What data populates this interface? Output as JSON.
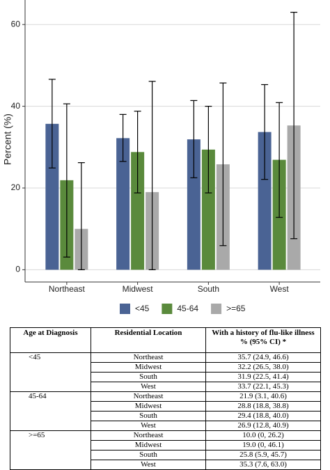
{
  "chart_data": {
    "type": "bar",
    "y_label": "Percent (%)",
    "categories": [
      "Northeast",
      "Midwest",
      "South",
      "West"
    ],
    "series": [
      {
        "name": "<45",
        "color": "#4a6394",
        "values": [
          35.7,
          32.2,
          31.9,
          33.7
        ],
        "lower": [
          24.9,
          26.5,
          22.5,
          22.1
        ],
        "upper": [
          46.6,
          38.0,
          41.4,
          45.3
        ]
      },
      {
        "name": "45-64",
        "color": "#5a8a3c",
        "values": [
          21.9,
          28.8,
          29.4,
          26.9
        ],
        "lower": [
          3.1,
          18.8,
          18.8,
          12.8
        ],
        "upper": [
          40.6,
          38.8,
          40.0,
          40.9
        ]
      },
      {
        "name": ">=65",
        "color": "#a9a9a9",
        "values": [
          10.0,
          19.0,
          25.8,
          35.3
        ],
        "lower": [
          0,
          0,
          5.9,
          7.6
        ],
        "upper": [
          26.2,
          46.1,
          45.7,
          63.0
        ]
      }
    ],
    "ylim": [
      -3,
      66
    ],
    "yticks": [
      0,
      20,
      40,
      60
    ],
    "grid": true,
    "legend": "bottom"
  },
  "table": {
    "header": [
      "Age at Diagnosis",
      "Residential Location",
      "With a history of flu-like illness % (95% CI) *"
    ],
    "groups": [
      {
        "age": "<45",
        "rows": [
          [
            "Northeast",
            "35.7 (24.9, 46.6)"
          ],
          [
            "Midwest",
            "32.2 (26.5, 38.0)"
          ],
          [
            "South",
            "31.9 (22.5, 41.4)"
          ],
          [
            "West",
            "33.7 (22.1, 45.3)"
          ]
        ]
      },
      {
        "age": "45-64",
        "rows": [
          [
            "Northeast",
            "21.9 (3.1, 40.6)"
          ],
          [
            "Midwest",
            "28.8 (18.8, 38.8)"
          ],
          [
            "South",
            "29.4 (18.8, 40.0)"
          ],
          [
            "West",
            "26.9 (12.8, 40.9)"
          ]
        ]
      },
      {
        "age": ">=65",
        "rows": [
          [
            "Northeast",
            "10.0 (0, 26.2)"
          ],
          [
            "Midwest",
            "19.0 (0, 46.1)"
          ],
          [
            "South",
            "25.8 (5.9, 45.7)"
          ],
          [
            "West",
            "35.3 (7.6, 63.0)"
          ]
        ]
      }
    ]
  }
}
